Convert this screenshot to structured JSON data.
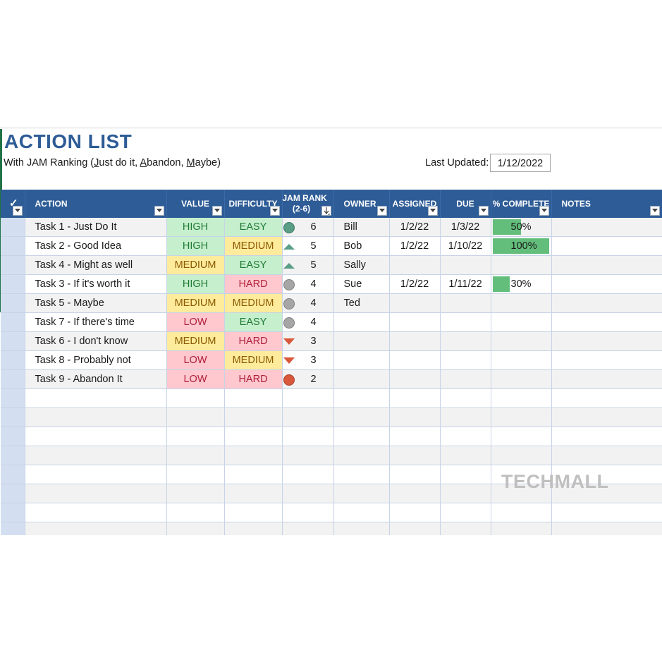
{
  "header": {
    "title": "ACTION LIST",
    "subtitle_parts": [
      {
        "text": "With JAM Ranking (",
        "u": false
      },
      {
        "text": "J",
        "u": true
      },
      {
        "text": "ust do it, ",
        "u": false
      },
      {
        "text": "A",
        "u": true
      },
      {
        "text": "bandon, ",
        "u": false
      },
      {
        "text": "M",
        "u": true
      },
      {
        "text": "aybe)",
        "u": false
      }
    ],
    "last_updated_label": "Last Updated:",
    "last_updated_value": "1/12/2022"
  },
  "columns": [
    {
      "key": "check",
      "label": "✓",
      "filter": true
    },
    {
      "key": "action",
      "label": "ACTION",
      "filter": true
    },
    {
      "key": "value",
      "label": "VALUE",
      "filter": true
    },
    {
      "key": "difficulty",
      "label": "DIFFICULTY",
      "filter": true
    },
    {
      "key": "jam",
      "label": "JAM RANK",
      "label2": "(2-6)",
      "filter": true,
      "sort": true
    },
    {
      "key": "owner",
      "label": "OWNER",
      "filter": true
    },
    {
      "key": "assigned",
      "label": "ASSIGNED",
      "filter": true
    },
    {
      "key": "due",
      "label": "DUE",
      "filter": true
    },
    {
      "key": "complete",
      "label": "% COMPLETE",
      "filter": true
    },
    {
      "key": "notes",
      "label": "NOTES",
      "filter": true
    }
  ],
  "rows": [
    {
      "action": "Task 1 - Just Do It",
      "value": "HIGH",
      "difficulty": "EASY",
      "jam_icon": "green-circle-icon",
      "jam": "6",
      "owner": "Bill",
      "assigned": "1/2/22",
      "due": "1/3/22",
      "complete": 0.5,
      "complete_label": "50%",
      "notes": ""
    },
    {
      "action": "Task 2 - Good Idea",
      "value": "HIGH",
      "difficulty": "MEDIUM",
      "jam_icon": "green-up-triangle-icon",
      "jam": "5",
      "owner": "Bob",
      "assigned": "1/2/22",
      "due": "1/10/22",
      "complete": 1.0,
      "complete_label": "100%",
      "notes": ""
    },
    {
      "action": "Task 4 - Might as well",
      "value": "MEDIUM",
      "difficulty": "EASY",
      "jam_icon": "green-up-triangle-icon",
      "jam": "5",
      "owner": "Sally",
      "assigned": "",
      "due": "",
      "complete": null,
      "complete_label": "",
      "notes": ""
    },
    {
      "action": "Task 3 - If it's worth it",
      "value": "HIGH",
      "difficulty": "HARD",
      "jam_icon": "gray-circle-icon",
      "jam": "4",
      "owner": "Sue",
      "assigned": "1/2/22",
      "due": "1/11/22",
      "complete": 0.3,
      "complete_label": "30%",
      "notes": ""
    },
    {
      "action": "Task 5 - Maybe",
      "value": "MEDIUM",
      "difficulty": "MEDIUM",
      "jam_icon": "gray-circle-icon",
      "jam": "4",
      "owner": "Ted",
      "assigned": "",
      "due": "",
      "complete": null,
      "complete_label": "",
      "notes": ""
    },
    {
      "action": "Task 7 - If there's time",
      "value": "LOW",
      "difficulty": "EASY",
      "jam_icon": "gray-circle-icon",
      "jam": "4",
      "owner": "",
      "assigned": "",
      "due": "",
      "complete": null,
      "complete_label": "",
      "notes": ""
    },
    {
      "action": "Task 6 - I don't know",
      "value": "MEDIUM",
      "difficulty": "HARD",
      "jam_icon": "red-down-triangle-icon",
      "jam": "3",
      "owner": "",
      "assigned": "",
      "due": "",
      "complete": null,
      "complete_label": "",
      "notes": ""
    },
    {
      "action": "Task 8 - Probably not",
      "value": "LOW",
      "difficulty": "MEDIUM",
      "jam_icon": "red-down-triangle-icon",
      "jam": "3",
      "owner": "",
      "assigned": "",
      "due": "",
      "complete": null,
      "complete_label": "",
      "notes": ""
    },
    {
      "action": "Task 9 - Abandon It",
      "value": "LOW",
      "difficulty": "HARD",
      "jam_icon": "red-circle-icon",
      "jam": "2",
      "owner": "",
      "assigned": "",
      "due": "",
      "complete": null,
      "complete_label": "",
      "notes": ""
    }
  ],
  "colors": {
    "header_bg": "#2e5c96",
    "title": "#2e5c96",
    "good": "#c6efce",
    "medium": "#ffeb9c",
    "bad": "#ffc7ce",
    "progress": "#63be7b",
    "jam_green": "#5a9e86",
    "jam_gray": "#a6a6a6",
    "jam_red": "#d9573a"
  },
  "watermark": "TECHMALL"
}
